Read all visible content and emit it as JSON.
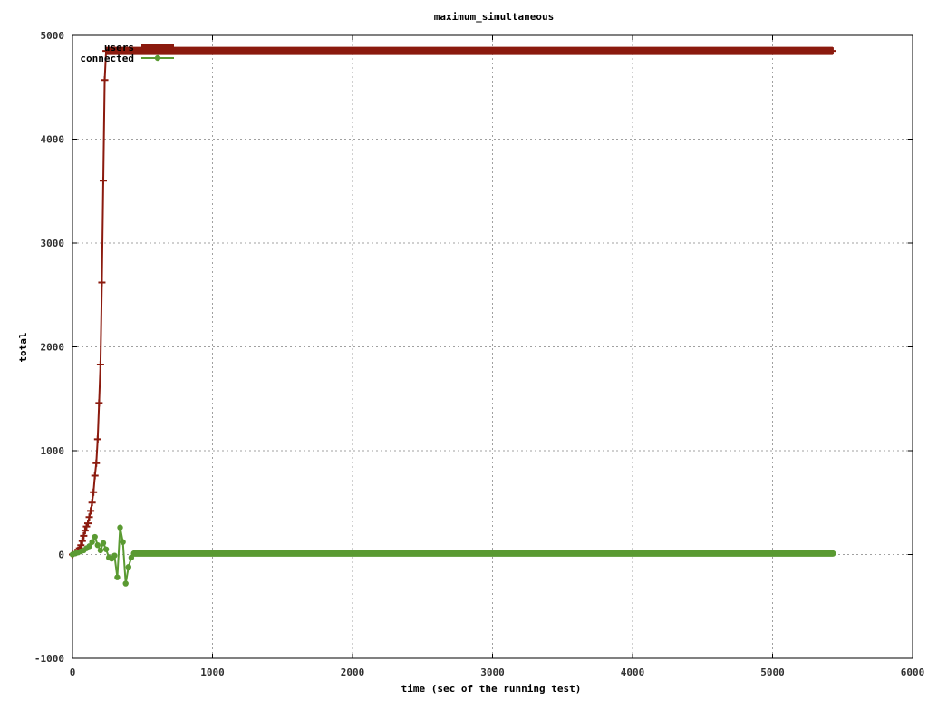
{
  "chart_data": {
    "type": "line",
    "title": "maximum_simultaneous",
    "xlabel": "time (sec of the running test)",
    "ylabel": "total",
    "xlim": [
      0,
      6000
    ],
    "ylim": [
      -1000,
      5000
    ],
    "grid": true,
    "legend_position": "top-left",
    "x_ticks": [
      "0",
      "1000",
      "2000",
      "3000",
      "4000",
      "5000",
      "6000"
    ],
    "y_ticks": [
      "-1000",
      "0",
      "1000",
      "2000",
      "3000",
      "4000",
      "5000"
    ],
    "series": [
      {
        "name": "users",
        "color": "#8b1a0e",
        "marker": "plus",
        "x": [
          0,
          20,
          40,
          50,
          60,
          70,
          80,
          90,
          100,
          110,
          120,
          130,
          140,
          150,
          160,
          170,
          180,
          190,
          200,
          210,
          220,
          230,
          240,
          250,
          260,
          280,
          300,
          400,
          500,
          1000,
          2000,
          3000,
          4000,
          5000,
          5430
        ],
        "y": [
          0,
          20,
          40,
          60,
          90,
          130,
          180,
          230,
          270,
          300,
          360,
          420,
          500,
          600,
          760,
          880,
          1110,
          1460,
          1830,
          2620,
          3600,
          4570,
          4850,
          4850,
          4850,
          4850,
          4850,
          4850,
          4850,
          4850,
          4850,
          4850,
          4850,
          4850,
          4850
        ]
      },
      {
        "name": "connected",
        "color": "#5a9a32",
        "marker": "filled-circle",
        "x": [
          0,
          20,
          40,
          60,
          80,
          100,
          120,
          140,
          160,
          180,
          200,
          220,
          240,
          260,
          280,
          300,
          320,
          340,
          360,
          380,
          400,
          420,
          440,
          460,
          500,
          1000,
          2000,
          3000,
          4000,
          5000,
          5430
        ],
        "y": [
          0,
          10,
          20,
          30,
          40,
          60,
          80,
          120,
          170,
          90,
          40,
          110,
          50,
          -30,
          -40,
          -10,
          -220,
          260,
          120,
          -280,
          -120,
          -30,
          10,
          10,
          10,
          10,
          10,
          10,
          10,
          10,
          10
        ]
      }
    ]
  }
}
